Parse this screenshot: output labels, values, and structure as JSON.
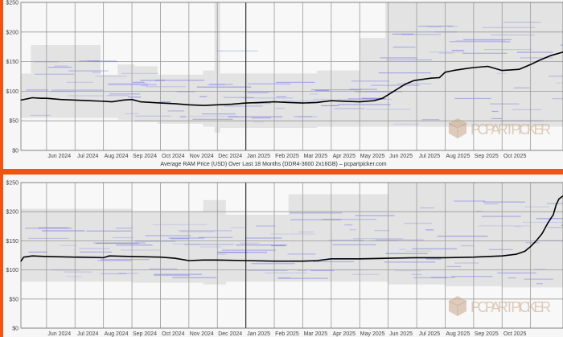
{
  "colors": {
    "accent": "#f3530f",
    "avg_line": "#000000",
    "stripe": "#5a5ae6",
    "band": "#dcdcdc",
    "grid": "#999999"
  },
  "watermark": {
    "text": "PCPARTPICKER"
  },
  "chart_data": [
    {
      "type": "line",
      "title": "",
      "caption": "Average RAM Price (USD) Over Last 18 Months (DDR4-3600 2x16GB) – pcpartpicker.com",
      "xlabel": "",
      "ylabel": "",
      "x_units": "months since 2024-05-01",
      "xlim": [
        0.1,
        19.14
      ],
      "ylim": [
        0,
        250
      ],
      "grid": true,
      "yticks": [
        {
          "v": 0,
          "label": "$0"
        },
        {
          "v": 50,
          "label": "$50"
        },
        {
          "v": 100,
          "label": "$100"
        },
        {
          "v": 150,
          "label": "$150"
        },
        {
          "v": 200,
          "label": "$200"
        },
        {
          "v": 250,
          "label": "$250"
        }
      ],
      "xticks": [
        {
          "v": 1,
          "label": "Jun 2024"
        },
        {
          "v": 2,
          "label": "Jul 2024"
        },
        {
          "v": 3,
          "label": "Aug 2024"
        },
        {
          "v": 4,
          "label": "Sep 2024"
        },
        {
          "v": 5,
          "label": "Oct 2024"
        },
        {
          "v": 6,
          "label": "Nov 2024"
        },
        {
          "v": 7,
          "label": "Dec 2024"
        },
        {
          "v": 8,
          "label": "Jan 2025"
        },
        {
          "v": 9,
          "label": "Feb 2025"
        },
        {
          "v": 10,
          "label": "Mar 2025"
        },
        {
          "v": 11,
          "label": "Apr 2025"
        },
        {
          "v": 12,
          "label": "May 2025"
        },
        {
          "v": 13,
          "label": "Jun 2025"
        },
        {
          "v": 14,
          "label": "Jul 2025"
        },
        {
          "v": 15,
          "label": "Aug 2025"
        },
        {
          "v": 16,
          "label": "Sep 2025"
        },
        {
          "v": 17,
          "label": "Oct 2025"
        }
      ],
      "year_boundary": 8,
      "series": [
        {
          "name": "Average price",
          "values": [
            [
              0.1,
              85
            ],
            [
              0.3,
              87
            ],
            [
              0.5,
              89
            ],
            [
              0.8,
              88
            ],
            [
              1,
              88
            ],
            [
              1.5,
              86
            ],
            [
              2,
              85
            ],
            [
              2.5,
              84
            ],
            [
              3,
              83
            ],
            [
              3.3,
              82
            ],
            [
              3.7,
              85
            ],
            [
              4,
              86
            ],
            [
              4.3,
              82
            ],
            [
              5,
              80
            ],
            [
              5.5,
              79
            ],
            [
              6,
              77
            ],
            [
              6.5,
              76
            ],
            [
              7,
              77
            ],
            [
              7.5,
              78
            ],
            [
              8,
              80
            ],
            [
              8.5,
              81
            ],
            [
              9,
              82
            ],
            [
              9.5,
              81
            ],
            [
              10,
              80
            ],
            [
              10.5,
              81
            ],
            [
              11,
              84
            ],
            [
              11.5,
              83
            ],
            [
              12,
              82
            ],
            [
              12.5,
              84
            ],
            [
              12.8,
              88
            ],
            [
              13.2,
              100
            ],
            [
              13.6,
              112
            ],
            [
              13.9,
              118
            ],
            [
              14.5,
              122
            ],
            [
              14.8,
              123
            ],
            [
              15,
              132
            ],
            [
              15.3,
              135
            ],
            [
              15.7,
              138
            ],
            [
              16,
              140
            ],
            [
              16.5,
              142
            ],
            [
              17,
              135
            ],
            [
              17.3,
              136
            ],
            [
              17.6,
              137
            ],
            [
              18,
              145
            ],
            [
              18.3,
              152
            ],
            [
              18.7,
              160
            ],
            [
              19.14,
              166
            ]
          ]
        }
      ],
      "range_bands": [
        [
          0.1,
          0.45,
          55,
          130
        ],
        [
          0.45,
          2.9,
          55,
          178
        ],
        [
          2.9,
          3.5,
          55,
          128
        ],
        [
          3.5,
          4.1,
          52,
          145
        ],
        [
          4.1,
          4.9,
          48,
          142
        ],
        [
          4.9,
          6.5,
          45,
          128
        ],
        [
          6.5,
          6.9,
          40,
          135
        ],
        [
          6.9,
          7.1,
          30,
          250
        ],
        [
          7.1,
          8,
          38,
          130
        ],
        [
          8,
          10.5,
          38,
          130
        ],
        [
          10.5,
          12,
          40,
          135
        ],
        [
          12,
          12.9,
          40,
          190
        ],
        [
          12.9,
          15,
          40,
          250
        ],
        [
          15,
          16.5,
          40,
          250
        ],
        [
          16.5,
          19.14,
          40,
          250
        ]
      ]
    },
    {
      "type": "line",
      "title": "",
      "xlabel": "",
      "ylabel": "",
      "x_units": "months since 2024-05-01",
      "xlim": [
        0.1,
        19.14
      ],
      "ylim": [
        0,
        250
      ],
      "grid": true,
      "yticks": [
        {
          "v": 0,
          "label": "$0"
        },
        {
          "v": 50,
          "label": "$50"
        },
        {
          "v": 100,
          "label": "$100"
        },
        {
          "v": 150,
          "label": "$150"
        },
        {
          "v": 200,
          "label": "$200"
        },
        {
          "v": 250,
          "label": "$250"
        }
      ],
      "xticks": [
        {
          "v": 1,
          "label": "Jun 2024"
        },
        {
          "v": 2,
          "label": "Jul 2024"
        },
        {
          "v": 3,
          "label": "Aug 2024"
        },
        {
          "v": 4,
          "label": "Sep 2024"
        },
        {
          "v": 5,
          "label": "Oct 2024"
        },
        {
          "v": 6,
          "label": "Nov 2024"
        },
        {
          "v": 7,
          "label": "Dec 2024"
        },
        {
          "v": 8,
          "label": "Jan 2025"
        },
        {
          "v": 9,
          "label": "Feb 2025"
        },
        {
          "v": 10,
          "label": "Mar 2025"
        },
        {
          "v": 11,
          "label": "Apr 2025"
        },
        {
          "v": 12,
          "label": "May 2025"
        },
        {
          "v": 13,
          "label": "Jun 2025"
        },
        {
          "v": 14,
          "label": "Jul 2025"
        },
        {
          "v": 15,
          "label": "Aug 2025"
        },
        {
          "v": 16,
          "label": "Sep 2025"
        },
        {
          "v": 17,
          "label": "Oct 2025"
        }
      ],
      "year_boundary": 8,
      "series": [
        {
          "name": "Average price",
          "values": [
            [
              0.1,
              115
            ],
            [
              0.2,
              122
            ],
            [
              0.5,
              124
            ],
            [
              1,
              123
            ],
            [
              2,
              122
            ],
            [
              3,
              121
            ],
            [
              3.2,
              124
            ],
            [
              4,
              123
            ],
            [
              5,
              122
            ],
            [
              5.5,
              120
            ],
            [
              6,
              116
            ],
            [
              6.5,
              117
            ],
            [
              7,
              117
            ],
            [
              8,
              116
            ],
            [
              9,
              115
            ],
            [
              10,
              115
            ],
            [
              10.5,
              116
            ],
            [
              11,
              119
            ],
            [
              12,
              119
            ],
            [
              13,
              120
            ],
            [
              14,
              121
            ],
            [
              15,
              121
            ],
            [
              16,
              122
            ],
            [
              17,
              124
            ],
            [
              17.5,
              127
            ],
            [
              17.8,
              132
            ],
            [
              18,
              140
            ],
            [
              18.2,
              150
            ],
            [
              18.4,
              162
            ],
            [
              18.6,
              180
            ],
            [
              18.8,
              195
            ],
            [
              18.9,
              212
            ],
            [
              19.0,
              222
            ],
            [
              19.14,
              227
            ]
          ]
        }
      ],
      "range_bands": [
        [
          0.1,
          1,
          80,
          205
        ],
        [
          1,
          4,
          80,
          205
        ],
        [
          4,
          6.5,
          78,
          200
        ],
        [
          6.5,
          7.3,
          75,
          220
        ],
        [
          7.3,
          9.5,
          80,
          195
        ],
        [
          9.5,
          13,
          80,
          230
        ],
        [
          13,
          15,
          75,
          250
        ],
        [
          15,
          17,
          72,
          250
        ],
        [
          17,
          19.14,
          70,
          250
        ]
      ]
    }
  ]
}
